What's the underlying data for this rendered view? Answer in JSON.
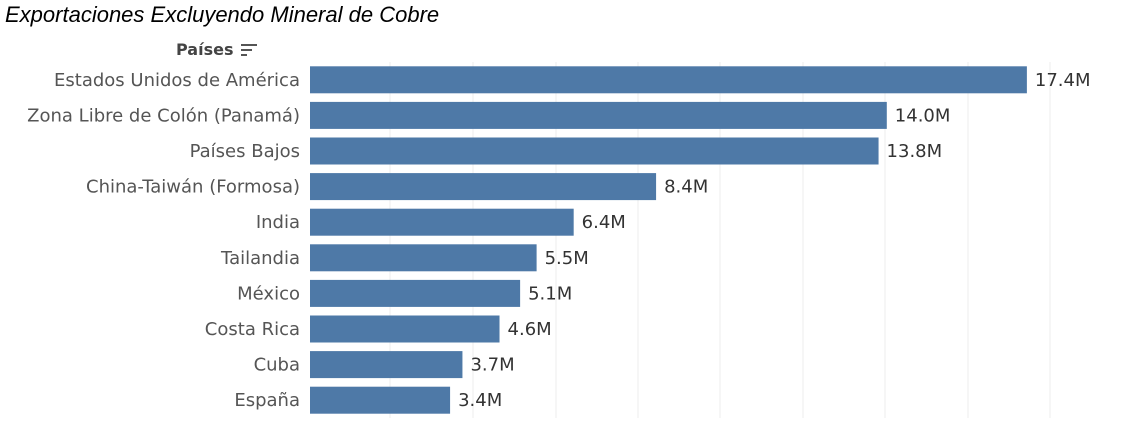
{
  "title": "Exportaciones Excluyendo Mineral de Cobre",
  "dimension_label": "Países",
  "colors": {
    "bar": "#4e79a7",
    "grid": "#ececec"
  },
  "icons": {
    "sort": "sort-descending-icon"
  },
  "chart_data": {
    "type": "bar",
    "orientation": "horizontal",
    "title": "Exportaciones Excluyendo Mineral de Cobre",
    "ylabel": "Países",
    "categories": [
      "Estados Unidos de América",
      "Zona Libre de Colón (Panamá)",
      "Países Bajos",
      "China-Taiwán (Formosa)",
      "India",
      "Tailandia",
      "México",
      "Costa Rica",
      "Cuba",
      "España"
    ],
    "values": [
      17.4,
      14.0,
      13.8,
      8.4,
      6.4,
      5.5,
      5.1,
      4.6,
      3.7,
      3.4
    ],
    "value_labels": [
      "17.4M",
      "14.0M",
      "13.8M",
      "8.4M",
      "6.4M",
      "5.5M",
      "5.1M",
      "4.6M",
      "3.7M",
      "3.4M"
    ],
    "unit": "M",
    "xlim": [
      0,
      18
    ],
    "grid": true,
    "legend": "none"
  }
}
